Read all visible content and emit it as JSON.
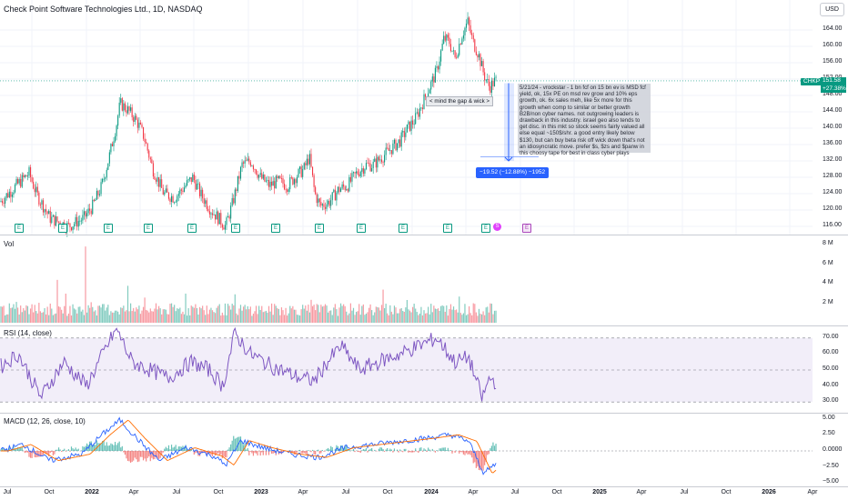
{
  "chart_title": "Check Point Software Technologies Ltd., 1D, NASDAQ",
  "currency_button": "USD",
  "symbol_tag": "CHKP",
  "last_price": "151.58",
  "price_change": "+27.38%",
  "annotation_text": "5/21/24 - vrockstar - 1 bn fcf on 15 bn ev is MSD fcf yield, ok, 15x PE on msd rev grow and 10% eps growth, ok. 6x sales meh, like 5x more for this growth when comp to similar or better growth B2B/non cyber names. not outgrowing leaders is drawback in this industry. israel geo also tends to get disc. in this mkt so stock seems fairly valued all else equal ~150$/shr. a good entry likely below $130, but can buy beta risk off wick down that's not an idiosyncratic move. prefer $s, $zs and $panw in this choosy tape for best in class cyber plays",
  "gap_note": "< mind the gap & wick >",
  "measure_label": "−19.52 (−12.88%) −1952",
  "earnings_badge": "E",
  "split_badge": "S",
  "price_axis": [
    "164.00",
    "160.00",
    "156.00",
    "152.00",
    "148.00",
    "144.00",
    "140.00",
    "136.00",
    "132.00",
    "128.00",
    "124.00",
    "120.00",
    "116.00"
  ],
  "vol_pane": {
    "label": "Vol",
    "axis": [
      "8 M",
      "6 M",
      "4 M",
      "2 M"
    ]
  },
  "rsi_pane": {
    "label": "RSI (14, close)",
    "axis": [
      "70.00",
      "60.00",
      "50.00",
      "40.00",
      "30.00"
    ]
  },
  "macd_pane": {
    "label": "MACD (12, 26, close, 10)",
    "axis": [
      "5.00",
      "2.50",
      "0.0000",
      "−2.50",
      "−5.00"
    ]
  },
  "time_axis": [
    "Jul",
    "Oct",
    "2022",
    "Apr",
    "Jul",
    "Oct",
    "2023",
    "Apr",
    "Jul",
    "Oct",
    "2024",
    "Apr",
    "Jul",
    "Oct",
    "2025",
    "Apr",
    "Jul",
    "Oct",
    "2026",
    "Apr"
  ],
  "colors": {
    "up": "#089981",
    "down": "#f23645",
    "rsi": "#7e57c2",
    "macd": "#2962ff",
    "signal": "#ff6d00",
    "accent": "#2962ff"
  },
  "chart_data": {
    "type": "candlestick",
    "title": "Check Point Software Technologies Ltd., 1D, NASDAQ",
    "ylim": [
      114,
      168
    ],
    "last_close": 151.58,
    "price_path": [
      [
        0,
        122
      ],
      [
        18,
        126
      ],
      [
        32,
        129
      ],
      [
        40,
        124
      ],
      [
        55,
        118
      ],
      [
        75,
        116
      ],
      [
        92,
        118
      ],
      [
        102,
        121
      ],
      [
        112,
        126
      ],
      [
        120,
        133
      ],
      [
        128,
        141
      ],
      [
        132,
        146
      ],
      [
        138,
        145
      ],
      [
        146,
        143
      ],
      [
        152,
        141
      ],
      [
        158,
        138
      ],
      [
        168,
        130
      ],
      [
        180,
        124
      ],
      [
        192,
        123
      ],
      [
        204,
        126
      ],
      [
        212,
        128
      ],
      [
        220,
        124
      ],
      [
        232,
        120
      ],
      [
        240,
        118
      ],
      [
        248,
        116
      ],
      [
        256,
        122
      ],
      [
        266,
        131
      ],
      [
        276,
        132
      ],
      [
        286,
        128
      ],
      [
        296,
        126
      ],
      [
        306,
        127
      ],
      [
        316,
        126
      ],
      [
        324,
        128
      ],
      [
        334,
        130
      ],
      [
        340,
        133
      ],
      [
        346,
        124
      ],
      [
        352,
        121
      ],
      [
        362,
        122
      ],
      [
        372,
        125
      ],
      [
        382,
        126
      ],
      [
        392,
        129
      ],
      [
        402,
        131
      ],
      [
        410,
        131
      ],
      [
        420,
        133
      ],
      [
        430,
        135
      ],
      [
        440,
        137
      ],
      [
        448,
        140
      ],
      [
        456,
        142
      ],
      [
        464,
        146
      ],
      [
        472,
        150
      ],
      [
        480,
        154
      ],
      [
        488,
        162
      ],
      [
        494,
        161
      ],
      [
        500,
        157
      ],
      [
        508,
        163
      ],
      [
        514,
        166
      ],
      [
        520,
        161
      ],
      [
        526,
        158
      ],
      [
        532,
        153
      ],
      [
        538,
        150
      ],
      [
        544,
        151.58
      ]
    ],
    "rsi_ylim": [
      25,
      75
    ],
    "rsi_path": [
      [
        0,
        52
      ],
      [
        20,
        60
      ],
      [
        45,
        33
      ],
      [
        70,
        55
      ],
      [
        95,
        40
      ],
      [
        115,
        62
      ],
      [
        128,
        76
      ],
      [
        145,
        55
      ],
      [
        165,
        50
      ],
      [
        185,
        45
      ],
      [
        210,
        55
      ],
      [
        230,
        50
      ],
      [
        245,
        40
      ],
      [
        258,
        73
      ],
      [
        275,
        60
      ],
      [
        300,
        52
      ],
      [
        325,
        46
      ],
      [
        345,
        43
      ],
      [
        360,
        55
      ],
      [
        375,
        65
      ],
      [
        395,
        50
      ],
      [
        420,
        56
      ],
      [
        440,
        60
      ],
      [
        460,
        65
      ],
      [
        480,
        70
      ],
      [
        500,
        55
      ],
      [
        515,
        58
      ],
      [
        530,
        32
      ],
      [
        538,
        45
      ],
      [
        546,
        42
      ]
    ],
    "macd_ylim": [
      -5.5,
      5.5
    ],
    "macd_path": [
      [
        0,
        0
      ],
      [
        25,
        1
      ],
      [
        55,
        -1.5
      ],
      [
        90,
        -0.5
      ],
      [
        112,
        2.5
      ],
      [
        132,
        4.8
      ],
      [
        150,
        2
      ],
      [
        175,
        -1.5
      ],
      [
        205,
        0.5
      ],
      [
        235,
        -0.8
      ],
      [
        248,
        -2.2
      ],
      [
        265,
        1.6
      ],
      [
        290,
        0.5
      ],
      [
        320,
        -0.5
      ],
      [
        350,
        -1
      ],
      [
        380,
        0.5
      ],
      [
        410,
        1
      ],
      [
        440,
        1.5
      ],
      [
        470,
        2
      ],
      [
        495,
        2.5
      ],
      [
        515,
        1.5
      ],
      [
        532,
        -3.5
      ],
      [
        540,
        -2.5
      ],
      [
        546,
        -2
      ]
    ],
    "earnings_days": [
      20,
      68,
      118,
      162,
      210,
      258,
      302,
      350,
      396,
      442,
      491,
      533
    ],
    "upcoming_earnings_day": 578
  }
}
